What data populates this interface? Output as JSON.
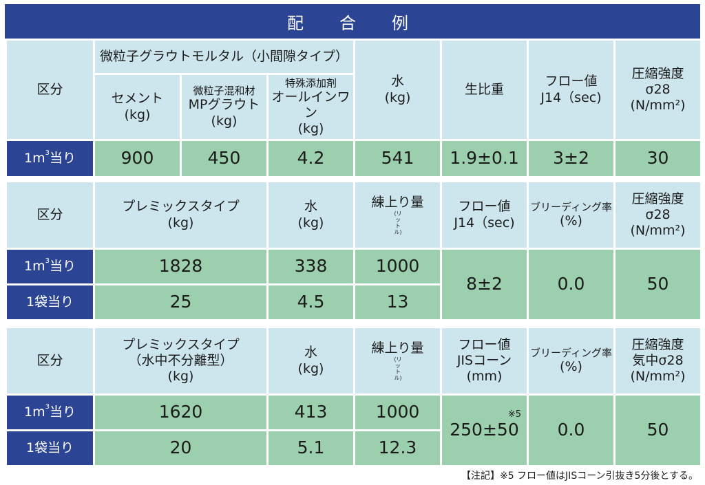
{
  "title": "配　合　例",
  "t1": {
    "kubun": "区分",
    "group": "微粒子グラウトモルタル（小間隙タイプ）",
    "cement": [
      "セメント",
      "(kg)"
    ],
    "mp": [
      "微粒子混和材",
      "MPグラウト",
      "(kg)"
    ],
    "add": [
      "特殊添加剤",
      "オールインワン",
      "(kg)"
    ],
    "water": [
      "水",
      "(kg)"
    ],
    "sg": "生比重",
    "flow": [
      "フロー値",
      "J14（sec)"
    ],
    "strength": [
      "圧縮強度",
      "σ28",
      "(N/mm²)"
    ],
    "row_base": "1m",
    "row_sup": "3",
    "row_tail": "当り",
    "values": [
      "900",
      "450",
      "4.2",
      "541",
      "1.9±0.1",
      "3±2",
      "30"
    ]
  },
  "t2": {
    "kubun": "区分",
    "premix": [
      "プレミックスタイプ",
      "(kg)"
    ],
    "water": [
      "水",
      "(kg)"
    ],
    "yield": "練上り量",
    "yield_unit": "(リットル)",
    "flow": [
      "フロー値",
      "J14（sec)"
    ],
    "bleed": [
      "ブリーディング率",
      "(%)"
    ],
    "strength": [
      "圧縮強度",
      "σ28",
      "(N/mm²)"
    ],
    "r1_base": "1m",
    "r1_sup": "3",
    "r1_tail": "当り",
    "r2": "1袋当り",
    "r1": [
      "1828",
      "338",
      "1000"
    ],
    "r2v": [
      "25",
      "4.5",
      "13"
    ],
    "flow_v": "8±2",
    "bleed_v": "0.0",
    "strength_v": "50"
  },
  "t3": {
    "kubun": "区分",
    "premix": [
      "プレミックスタイプ",
      "（水中不分離型）",
      "(kg)"
    ],
    "water": [
      "水",
      "(kg)"
    ],
    "yield": "練上り量",
    "yield_unit": "(リットル)",
    "flow": [
      "フロー値",
      "JISコーン",
      "(mm)"
    ],
    "bleed": [
      "ブリーディング率",
      "(%)"
    ],
    "strength": [
      "圧縮強度",
      "気中σ28",
      "(N/mm²)"
    ],
    "r1_base": "1m",
    "r1_sup": "3",
    "r1_tail": "当り",
    "r2": "1袋当り",
    "r1": [
      "1620",
      "413",
      "1000"
    ],
    "r2v": [
      "20",
      "5.1",
      "12.3"
    ],
    "flow_v": "250±50",
    "flow_mark": "※5",
    "bleed_v": "0.0",
    "strength_v": "50"
  },
  "note": "【注記】※5 フロー値はJISコーン引抜き5分後とする。"
}
